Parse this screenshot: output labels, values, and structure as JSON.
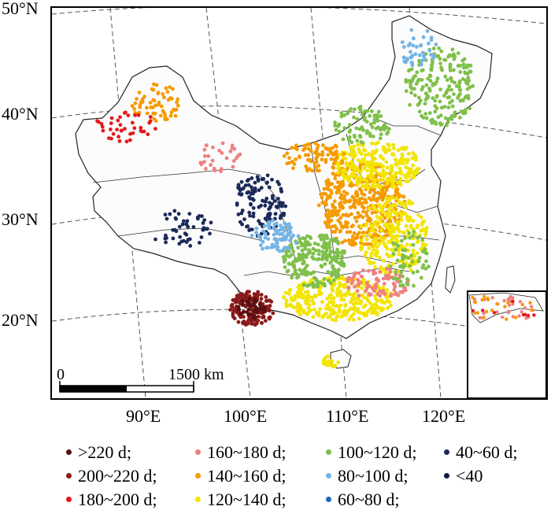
{
  "axes": {
    "lat_labels": [
      {
        "id": "lat-50",
        "text": "50°N"
      },
      {
        "id": "lat-40",
        "text": "40°N"
      },
      {
        "id": "lat-30",
        "text": "30°N"
      },
      {
        "id": "lat-20",
        "text": "20°N"
      }
    ],
    "lon_labels": [
      {
        "id": "lon-90",
        "text": "90°E"
      },
      {
        "id": "lon-100",
        "text": "100°E"
      },
      {
        "id": "lon-110",
        "text": "110°E"
      },
      {
        "id": "lon-120",
        "text": "120°E"
      }
    ]
  },
  "scale_bar": {
    "zero": "0",
    "distance": "1500 km"
  },
  "legend": {
    "items": [
      {
        "id": "gt220",
        "label": ">220 d;",
        "color": "#5a0f12"
      },
      {
        "id": "200-220",
        "label": "200~220 d;",
        "color": "#8b1a1a"
      },
      {
        "id": "180-200",
        "label": "180~200 d;",
        "color": "#e31a1c"
      },
      {
        "id": "160-180",
        "label": "160~180 d;",
        "color": "#f08080"
      },
      {
        "id": "140-160",
        "label": "140~160 d;",
        "color": "#f59b00"
      },
      {
        "id": "120-140",
        "label": "120~140 d;",
        "color": "#f2e500"
      },
      {
        "id": "100-120",
        "label": "100~120 d;",
        "color": "#7fc04a"
      },
      {
        "id": "80-100",
        "label": "80~100 d;",
        "color": "#74b4e6"
      },
      {
        "id": "60-80",
        "label": "60~80 d;",
        "color": "#1f66c0"
      },
      {
        "id": "40-60",
        "label": "40~60 d;",
        "color": "#1c2a5a"
      },
      {
        "id": "lt40",
        "label": "<40",
        "color": "#0f1a40"
      }
    ]
  }
}
